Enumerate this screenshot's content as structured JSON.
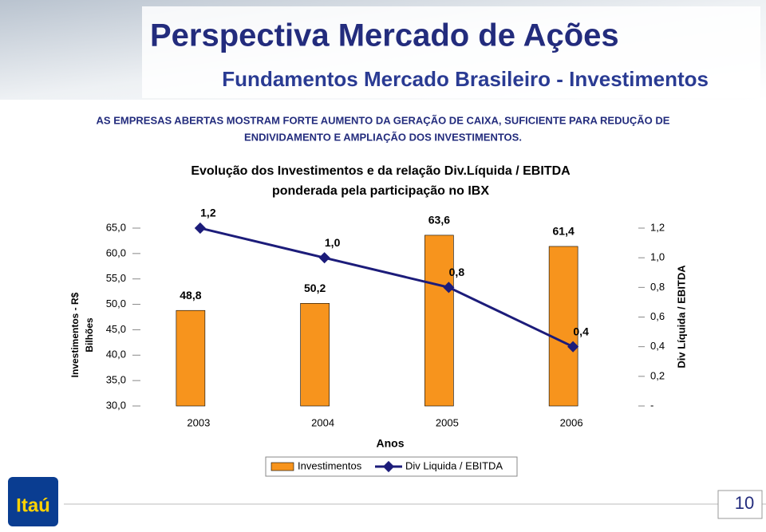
{
  "title": "Perspectiva Mercado de Ações",
  "subtitle": "Fundamentos Mercado Brasileiro - Investimentos",
  "text_lines": [
    "AS EMPRESAS ABERTAS MOSTRAM FORTE AUMENTO DA GERAÇÃO DE CAIXA, SUFICIENTE PARA REDUÇÃO DE",
    "ENDIVIDAMENTO E AMPLIAÇÃO DOS INVESTIMENTOS."
  ],
  "logo": "Itaú",
  "page_number": "10",
  "chart_data": {
    "type": "bar",
    "title": "Evolução dos Investimentos e da relação Div.Líquida / EBITDA",
    "subtitle": "ponderada pela participação no IBX",
    "x_label": "Anos",
    "y_label": [
      "Investimentos - R$",
      "Bilhões"
    ],
    "y2_label": "Div Líquida / EBITDA",
    "categories": [
      "2003",
      "2004",
      "2005",
      "2006"
    ],
    "series": [
      {
        "name": "Investimentos",
        "type": "bar",
        "color": "#f7941d",
        "values": [
          48.8,
          50.2,
          63.6,
          61.4
        ],
        "value_labels": [
          "48,8",
          "50,2",
          "63,6",
          "61,4"
        ]
      },
      {
        "name": "Div Liquida / EBITDA",
        "type": "line",
        "axis": "y2",
        "color": "#1c1c7a",
        "values": [
          1.2,
          1.0,
          0.8,
          0.4
        ],
        "value_labels": [
          "1,2",
          "1,0",
          "0,8",
          "0,4"
        ]
      }
    ],
    "ylim": [
      30,
      65
    ],
    "yticks": [
      {
        "value": 30,
        "label": "30,0"
      },
      {
        "value": 35,
        "label": "35,0"
      },
      {
        "value": 40,
        "label": "40,0"
      },
      {
        "value": 45,
        "label": "45,0"
      },
      {
        "value": 50,
        "label": "50,0"
      },
      {
        "value": 55,
        "label": "55,0"
      },
      {
        "value": 60,
        "label": "60,0"
      },
      {
        "value": 65,
        "label": "65,0"
      }
    ],
    "y2lim": [
      0,
      1.2
    ],
    "y2ticks": [
      {
        "value": 0,
        "label": "-"
      },
      {
        "value": 0.2,
        "label": "0,2"
      },
      {
        "value": 0.4,
        "label": "0,4"
      },
      {
        "value": 0.6,
        "label": "0,6"
      },
      {
        "value": 0.8,
        "label": "0,8"
      },
      {
        "value": 1.0,
        "label": "1,0"
      },
      {
        "value": 1.2,
        "label": "1,2"
      }
    ],
    "legend": "bottom"
  }
}
